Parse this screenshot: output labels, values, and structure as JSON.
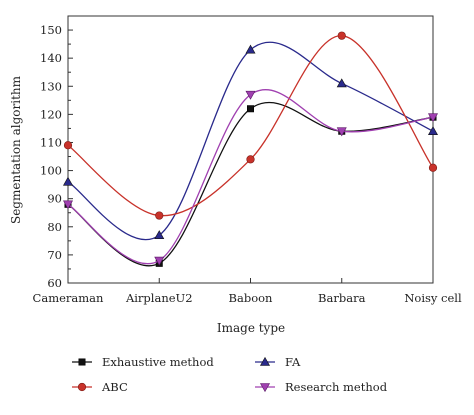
{
  "chart_data": {
    "type": "line",
    "xlabel": "Image type",
    "ylabel": "Segmentation algorithm",
    "categories": [
      "Cameraman",
      "AirplaneU2",
      "Baboon",
      "Barbara",
      "Noisy cell"
    ],
    "ylim": [
      60,
      155
    ],
    "yticks": [
      60,
      70,
      80,
      90,
      100,
      110,
      120,
      130,
      140,
      150
    ],
    "grid": false,
    "legend_position": "bottom",
    "series": [
      {
        "name": "Exhaustive method",
        "values": [
          88,
          67,
          122,
          114,
          119
        ],
        "color": "#111111",
        "marker": "square"
      },
      {
        "name": "FA",
        "values": [
          96,
          77,
          143,
          131,
          114
        ],
        "color": "#2a2a8c",
        "marker": "triangle-up"
      },
      {
        "name": "ABC",
        "values": [
          109,
          84,
          104,
          148,
          101
        ],
        "color": "#c8322a",
        "marker": "circle"
      },
      {
        "name": "Research method",
        "values": [
          88,
          68,
          127,
          114,
          119
        ],
        "color": "#a040b0",
        "marker": "triangle-down"
      }
    ]
  }
}
